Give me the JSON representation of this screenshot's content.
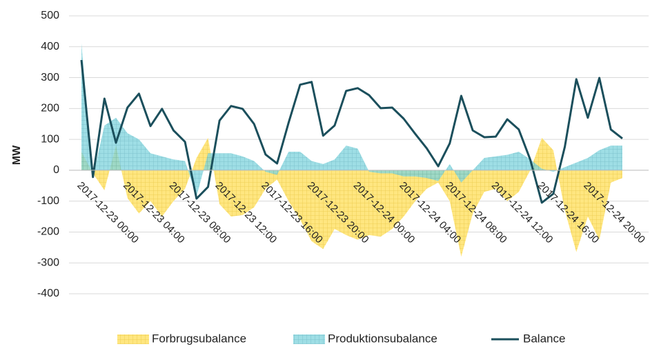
{
  "chart_data": {
    "type": "area-line",
    "y_label": "MW",
    "categories": [
      "2017-12-23 00:00",
      null,
      null,
      null,
      "2017-12-23 04:00",
      null,
      null,
      null,
      "2017-12-23 08:00",
      null,
      null,
      null,
      "2017-12-23 12:00",
      null,
      null,
      null,
      "2017-12-23 16:00",
      null,
      null,
      null,
      "2017-12-23 20:00",
      null,
      null,
      null,
      "2017-12-24 00:00",
      null,
      null,
      null,
      "2017-12-24 04:00",
      null,
      null,
      null,
      "2017-12-24 08:00",
      null,
      null,
      null,
      "2017-12-24 12:00",
      null,
      null,
      null,
      "2017-12-24 16:00",
      null,
      null,
      null,
      "2017-12-24 20:00",
      null,
      null,
      null
    ],
    "ylim": [
      -400,
      500
    ],
    "yticks": [
      -400,
      -300,
      -200,
      -100,
      0,
      100,
      200,
      300,
      400,
      500
    ],
    "grid": true,
    "legend": "bottom",
    "series": [
      {
        "name": "Forbrugsubalance",
        "kind": "area",
        "color": "#ffe680",
        "values": [
          60,
          -10,
          -65,
          80,
          -90,
          -140,
          -100,
          -150,
          -100,
          -60,
          40,
          105,
          -110,
          -150,
          -145,
          -120,
          -60,
          -30,
          -100,
          -160,
          -230,
          -255,
          -190,
          -210,
          -225,
          -210,
          -215,
          -190,
          -150,
          -100,
          -60,
          -40,
          -100,
          -280,
          -140,
          -70,
          -60,
          -100,
          -70,
          0,
          105,
          65,
          -130,
          -265,
          -150,
          -225,
          -40,
          -25
        ]
      },
      {
        "name": "Produktionsubalance",
        "kind": "area",
        "color": "#7dd3dc",
        "values": [
          410,
          -20,
          145,
          170,
          120,
          100,
          55,
          45,
          35,
          30,
          -85,
          55,
          55,
          55,
          45,
          30,
          -5,
          -15,
          60,
          60,
          30,
          20,
          35,
          80,
          70,
          -5,
          -10,
          -10,
          -20,
          -20,
          -25,
          -35,
          20,
          -40,
          0,
          40,
          45,
          50,
          60,
          35,
          5,
          -5,
          10,
          25,
          40,
          65,
          80,
          80
        ]
      },
      {
        "name": "Balance",
        "kind": "line",
        "color": "#1b4f5c",
        "values": [
          357,
          -22,
          232,
          89,
          203,
          248,
          143,
          199,
          129,
          92,
          -92,
          -54,
          161,
          208,
          199,
          150,
          51,
          22,
          154,
          277,
          286,
          112,
          145,
          257,
          266,
          243,
          201,
          203,
          167,
          118,
          71,
          13,
          87,
          241,
          129,
          107,
          109,
          165,
          132,
          34,
          -105,
          -76,
          76,
          295,
          170,
          299,
          132,
          103
        ]
      }
    ]
  }
}
